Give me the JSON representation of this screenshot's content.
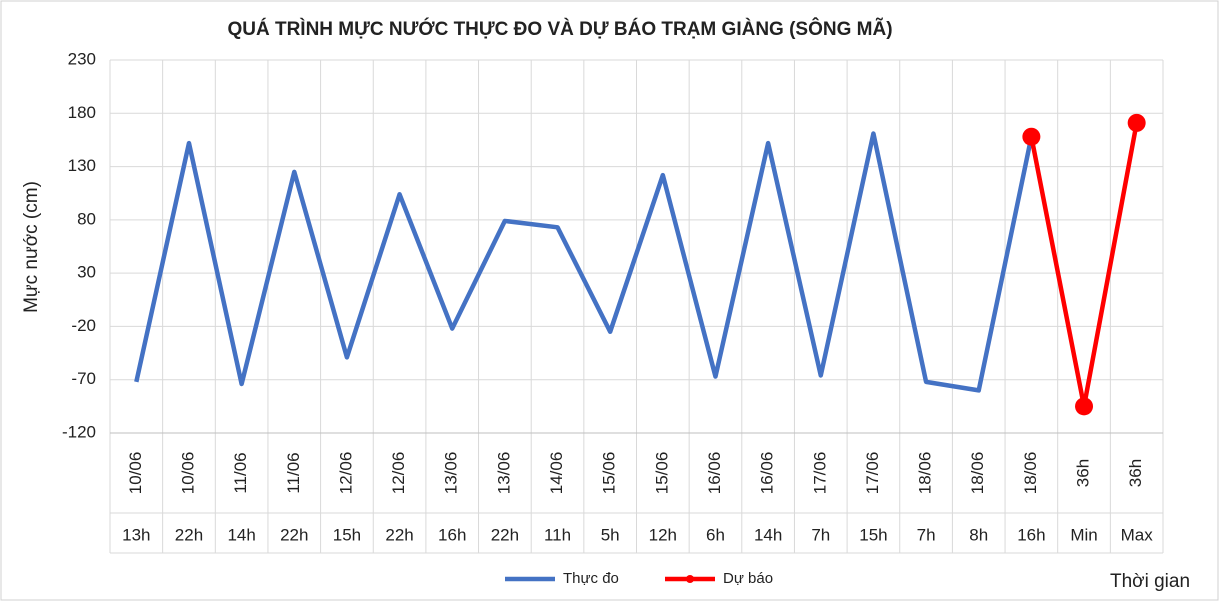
{
  "chart_data": {
    "type": "line",
    "title": "QUÁ TRÌNH MỰC NƯỚC THỰC ĐO VÀ DỰ BÁO TRẠM  GIÀNG (SÔNG MÃ)",
    "y_label": "Mực nước (cm)",
    "x_label": "Thời gian",
    "categories": [
      "10/06",
      "10/06",
      "11/06",
      "11/06",
      "12/06",
      "12/06",
      "13/06",
      "13/06",
      "14/06",
      "15/06",
      "15/06",
      "16/06",
      "16/06",
      "17/06",
      "17/06",
      "18/06",
      "18/06",
      "18/06",
      "36h",
      "36h"
    ],
    "sub_categories": [
      "13h",
      "22h",
      "14h",
      "22h",
      "15h",
      "22h",
      "16h",
      "22h",
      "11h",
      "5h",
      "12h",
      "6h",
      "14h",
      "7h",
      "15h",
      "7h",
      "8h",
      "16h",
      "Min",
      "Max"
    ],
    "series": [
      {
        "name": "Thực đo",
        "color": "#4472c4",
        "marker": false,
        "values": [
          -72,
          152,
          -74,
          125,
          -49,
          104,
          -22,
          79,
          73,
          -25,
          122,
          -67,
          152,
          -66,
          161,
          -72,
          -80,
          158,
          null,
          null
        ]
      },
      {
        "name": "Dự báo",
        "color": "#ff0000",
        "marker": true,
        "values": [
          null,
          null,
          null,
          null,
          null,
          null,
          null,
          null,
          null,
          null,
          null,
          null,
          null,
          null,
          null,
          null,
          null,
          158,
          -95,
          171
        ]
      }
    ],
    "ylim": [
      -120,
      230
    ],
    "yticks": [
      -120,
      -70,
      -20,
      30,
      80,
      130,
      180,
      230
    ],
    "grid": true,
    "legend": "bottom"
  }
}
